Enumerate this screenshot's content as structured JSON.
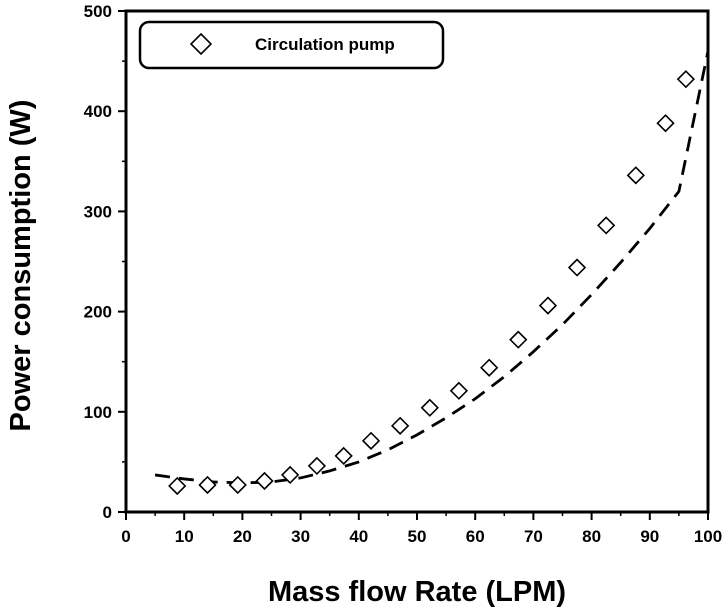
{
  "chart_data": {
    "type": "scatter",
    "xlabel": "Mass flow Rate (LPM)",
    "ylabel": "Power consumption (W)",
    "xlim": [
      0,
      100
    ],
    "ylim": [
      0,
      500
    ],
    "xticks": [
      "0",
      "10",
      "20",
      "30",
      "40",
      "50",
      "60",
      "70",
      "80",
      "90",
      "100"
    ],
    "yticks": [
      "0",
      "100",
      "200",
      "300",
      "400",
      "500"
    ],
    "grid": false,
    "legend_position": "top-left",
    "series": [
      {
        "name": "Circulation pump",
        "marker": "open-diamond",
        "x": [
          8.8,
          14.0,
          19.2,
          23.8,
          28.2,
          32.8,
          37.4,
          42.1,
          47.1,
          52.2,
          57.2,
          62.4,
          67.4,
          72.5,
          77.5,
          82.5,
          87.6,
          92.7,
          96.2
        ],
        "y": [
          26,
          27,
          27,
          31,
          37,
          46,
          56,
          71,
          86,
          104,
          121,
          144,
          172,
          206,
          244,
          286,
          336,
          388,
          432
        ]
      }
    ],
    "trend_line": {
      "style": "dashed",
      "x": [
        5,
        10,
        15,
        20,
        25,
        30,
        35,
        40,
        45,
        50,
        55,
        60,
        65,
        70,
        75,
        80,
        85,
        90,
        95,
        100
      ],
      "y": [
        37,
        33,
        30,
        29,
        30,
        34,
        41,
        50,
        62,
        77,
        94,
        113,
        135,
        160,
        187,
        217,
        249,
        283,
        320,
        460
      ]
    }
  }
}
